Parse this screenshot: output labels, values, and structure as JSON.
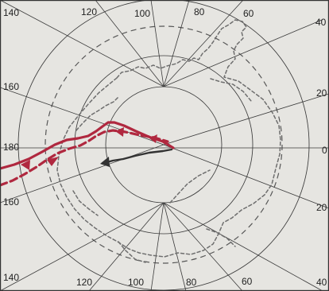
{
  "map": {
    "projection": "south-polar-stereographic",
    "colors": {
      "background": "#e6e5e1",
      "grid": "#3a3a3a",
      "coastline": "#6e6e6e",
      "track_red": "#b0283f",
      "track_dark": "#333333"
    },
    "longitude_labels": [
      {
        "id": "top-140",
        "text": "140"
      },
      {
        "id": "top-120",
        "text": "120"
      },
      {
        "id": "top-100",
        "text": "100"
      },
      {
        "id": "top-80",
        "text": "80"
      },
      {
        "id": "top-60",
        "text": "60"
      },
      {
        "id": "right-40-top",
        "text": "40"
      },
      {
        "id": "left-160-upper",
        "text": "160"
      },
      {
        "id": "right-20-upper",
        "text": "20"
      },
      {
        "id": "left-180",
        "text": "180"
      },
      {
        "id": "right-0",
        "text": "0"
      },
      {
        "id": "left-160-lower",
        "text": "160"
      },
      {
        "id": "right-20-lower",
        "text": "20"
      },
      {
        "id": "bottom-140",
        "text": "140"
      },
      {
        "id": "bottom-120",
        "text": "120"
      },
      {
        "id": "bottom-100",
        "text": "100"
      },
      {
        "id": "bottom-80",
        "text": "80"
      },
      {
        "id": "bottom-60",
        "text": "60"
      },
      {
        "id": "right-40-bottom",
        "text": "40"
      }
    ],
    "tracks": [
      {
        "id": "red-track-1",
        "color": "#b0283f",
        "style": "solid-with-arrows"
      },
      {
        "id": "red-track-2",
        "color": "#b0283f",
        "style": "dashed-with-arrows"
      },
      {
        "id": "dark-track",
        "color": "#333333",
        "style": "solid-with-arrow"
      }
    ]
  }
}
